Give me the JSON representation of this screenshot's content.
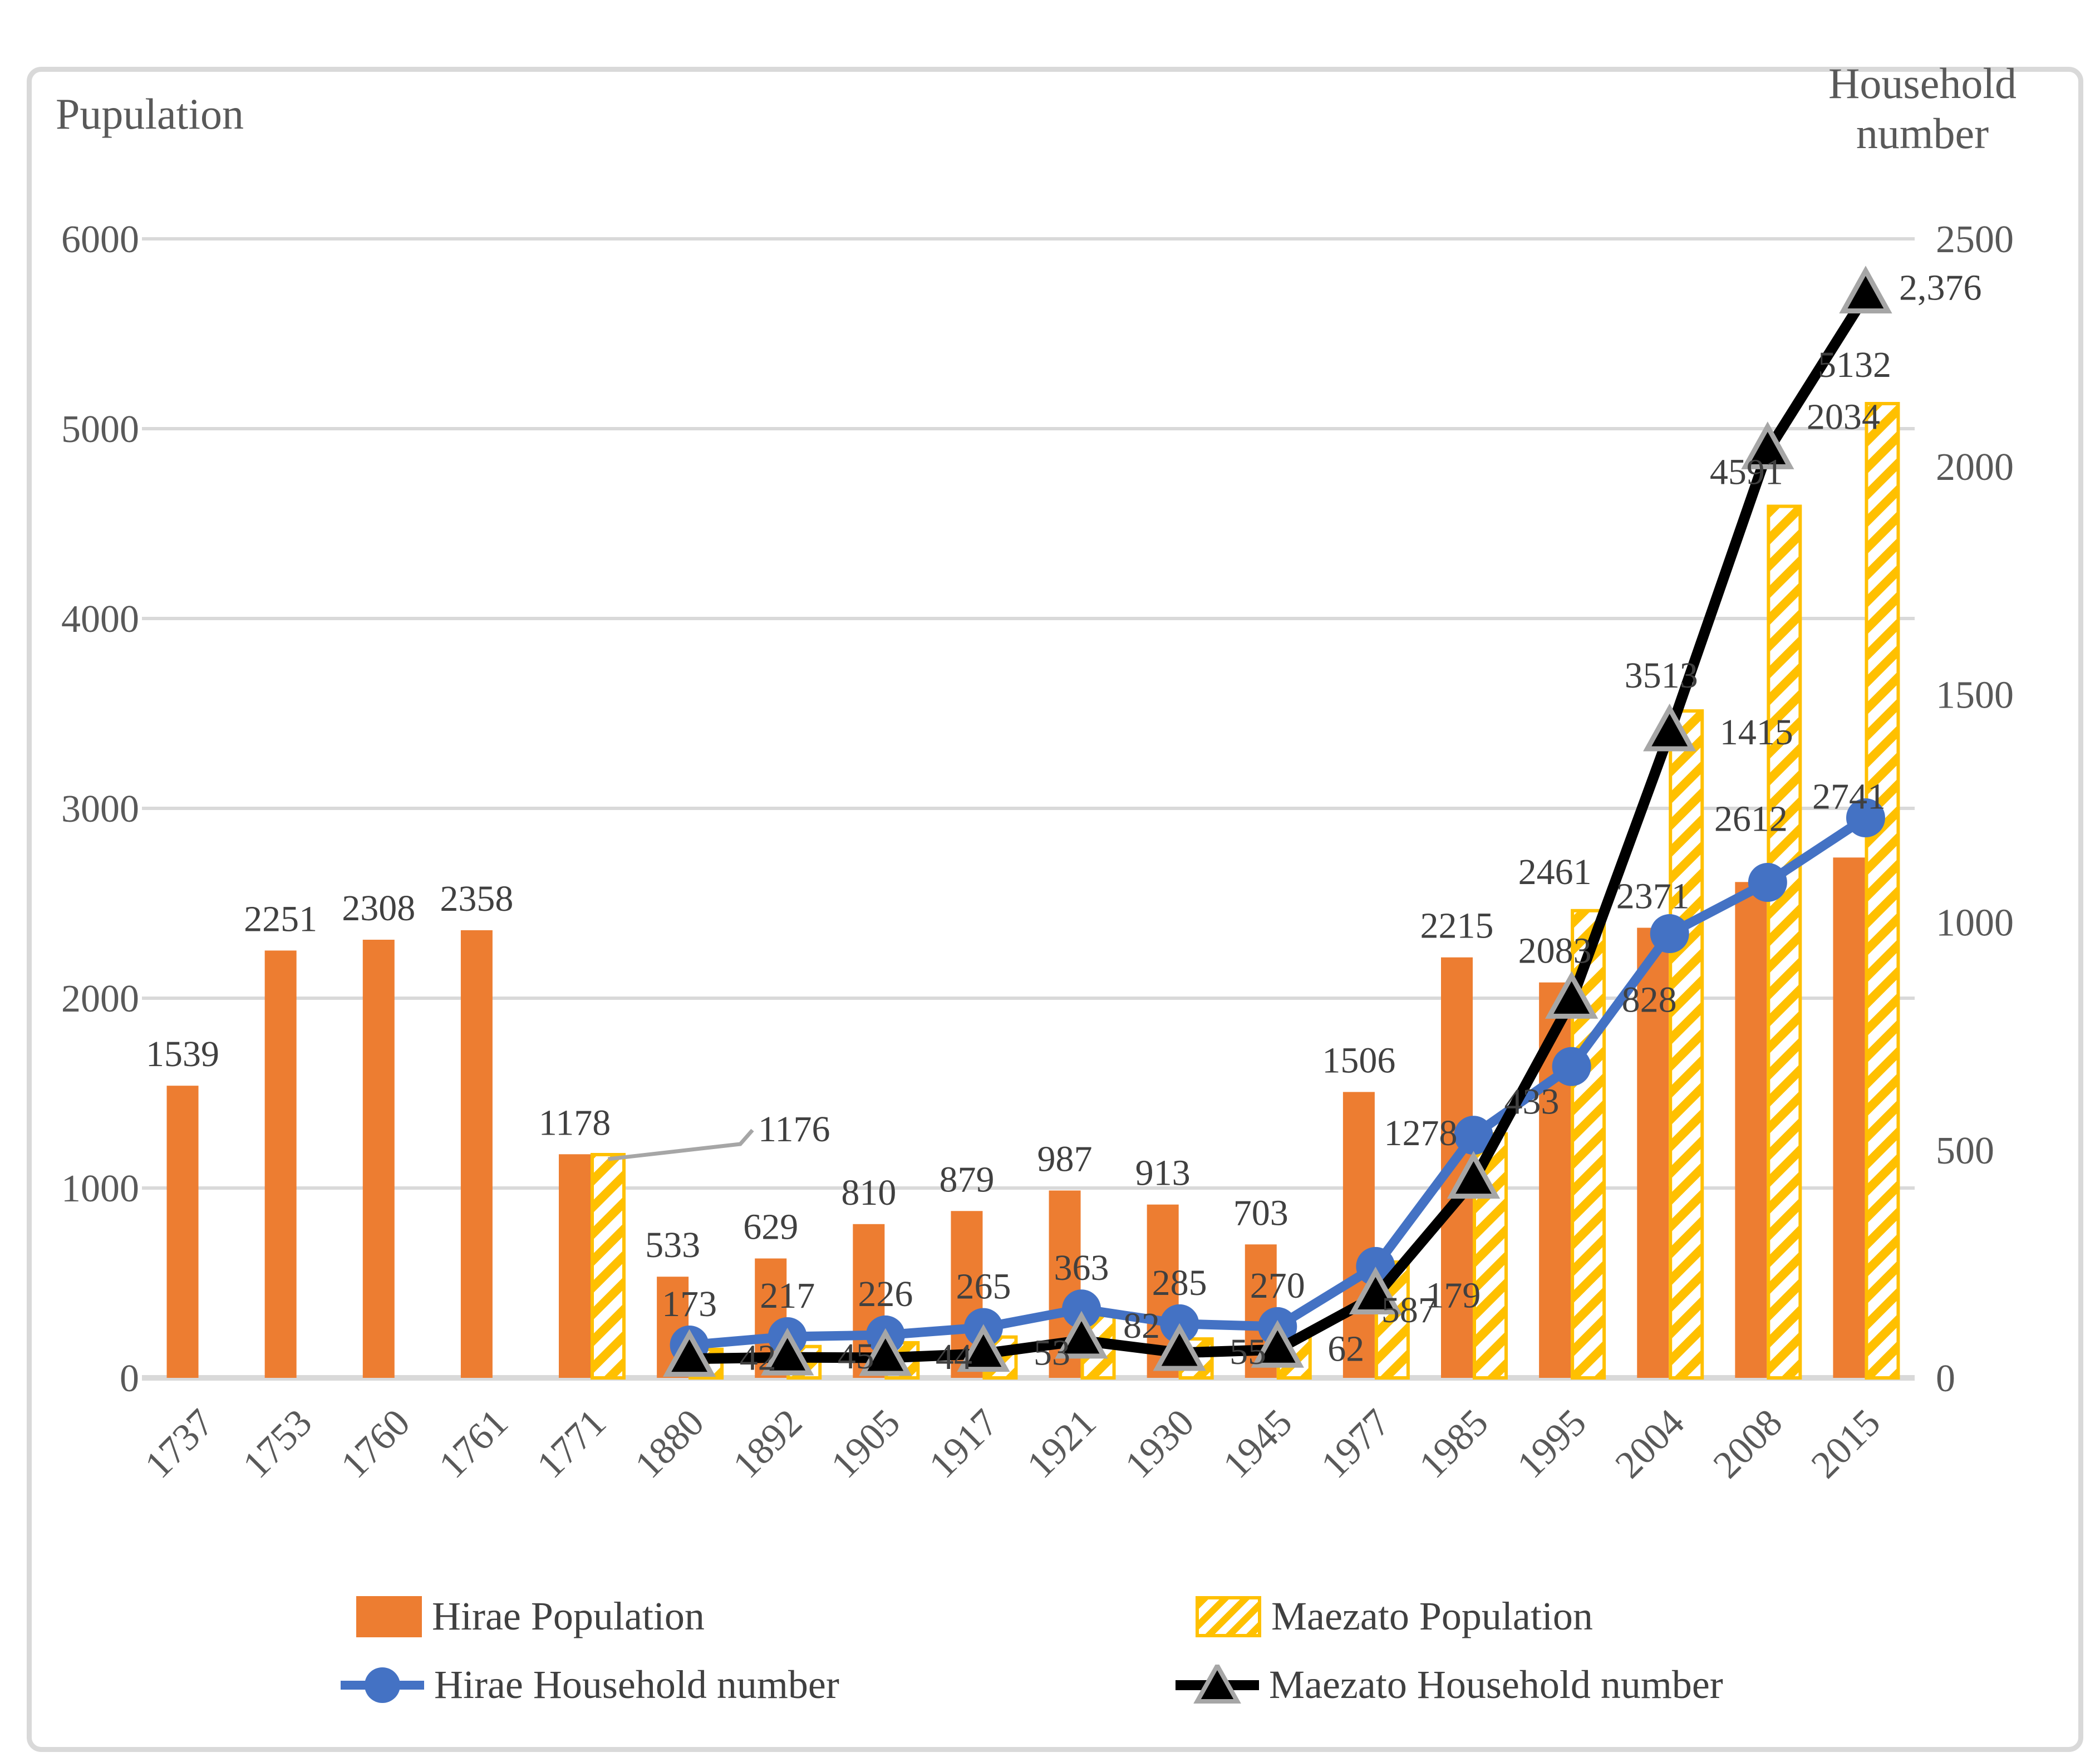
{
  "chart": {
    "left_axis_title": "Pupulation",
    "right_axis_title_line1": "Household",
    "right_axis_title_line2": "number"
  },
  "legend": {
    "hirae_pop": "Hirae Population",
    "maezato_pop": "Maezato Population",
    "hirae_hh": "Hirae Household number",
    "maezato_hh": "Maezato Household number"
  },
  "colors": {
    "orange": "#ED7D31",
    "yellow": "#FFC000",
    "blue": "#4472C4",
    "black": "#000000",
    "gridline": "#D9D9D9",
    "axis_text": "#595959",
    "label_text": "#404040",
    "marker_edge": "#A6A6A6"
  },
  "chart_data": {
    "type": "bar",
    "subtype": "combo-bar-line-dual-axis",
    "categories": [
      "1737",
      "1753",
      "1760",
      "1761",
      "1771",
      "1880",
      "1892",
      "1905",
      "1917",
      "1921",
      "1930",
      "1945",
      "1977",
      "1985",
      "1995",
      "2004",
      "2008",
      "2015"
    ],
    "left_axis": {
      "min": 0,
      "max": 6000,
      "gridline_step": 1000,
      "ticks": [
        "0",
        "1000",
        "2000",
        "3000",
        "4000",
        "5000",
        "6000"
      ]
    },
    "right_axis": {
      "min": 0,
      "max": 2500,
      "ticks": [
        "0",
        "500",
        "1000",
        "1500",
        "2000",
        "2500"
      ]
    },
    "grid": true,
    "legend_position": "bottom",
    "series": [
      {
        "name": "Hirae Population",
        "type": "bar",
        "axis": "left",
        "color": "#ED7D31",
        "values": [
          1539,
          2251,
          2308,
          2358,
          1178,
          533,
          629,
          810,
          879,
          987,
          913,
          703,
          1506,
          2215,
          2083,
          2371,
          2612,
          2741
        ],
        "labels": [
          "1539",
          "2251",
          "2308",
          "2358",
          "1178",
          "533",
          "629",
          "810",
          "879",
          "987",
          "913",
          "703",
          "1506",
          "2215",
          "2083",
          "2371",
          "2612",
          "2741"
        ],
        "label_offsets": {
          "16": [
            0,
            -92
          ],
          "17": [
            0,
            -88
          ]
        }
      },
      {
        "name": "Maezato Population",
        "type": "bar",
        "style": "hatched",
        "axis": "left",
        "color": "#FFC000",
        "values": [
          null,
          null,
          null,
          null,
          1176,
          150,
          165,
          185,
          215,
          330,
          205,
          225,
          610,
          1285,
          2461,
          3513,
          4591,
          5132
        ],
        "labels": [
          null,
          null,
          null,
          null,
          "1176",
          null,
          null,
          null,
          null,
          null,
          null,
          null,
          null,
          null,
          "2461",
          "3513",
          "4591",
          "5132"
        ],
        "label_offsets": {
          "14": [
            -60,
            -48
          ],
          "15": [
            -45,
            -42
          ],
          "16": [
            -68,
            -40
          ],
          "17": [
            -50,
            -48
          ]
        },
        "leader_label_index": 4,
        "unlabeled_values_estimated_from_pixels": true
      },
      {
        "name": "Hirae Household number",
        "type": "line",
        "marker": "circle",
        "axis": "left",
        "color": "#4472C4",
        "values": [
          null,
          null,
          null,
          null,
          null,
          173,
          217,
          226,
          265,
          363,
          285,
          270,
          587,
          1278,
          1640,
          2340,
          2610,
          2950
        ],
        "labels": [
          null,
          null,
          null,
          null,
          null,
          "173",
          "217",
          "226",
          "265",
          "363",
          "285",
          "270",
          "587",
          "1278",
          null,
          null,
          null,
          null
        ],
        "label_offsets": {
          "12": [
            60,
            100
          ],
          "13": [
            -95,
            18
          ]
        },
        "unlabeled_values_estimated_from_pixels": true
      },
      {
        "name": "Maezato Household number",
        "type": "line",
        "marker": "triangle",
        "axis": "right",
        "color": "#000000",
        "values": [
          null,
          null,
          null,
          null,
          null,
          42,
          45,
          44,
          53,
          82,
          55,
          62,
          179,
          433,
          828,
          1415,
          2034,
          2376
        ],
        "labels": [
          null,
          null,
          null,
          null,
          null,
          "42",
          "45",
          "44",
          "53",
          "82",
          "55",
          "62",
          "179",
          "433",
          "828",
          "1415",
          "2034",
          "2,376"
        ],
        "label_offsets": {
          "9": [
            75,
            -5
          ],
          "13": [
            55,
            -120
          ],
          "16": [
            70,
            -40
          ],
          "17": [
            60,
            8
          ]
        }
      }
    ]
  }
}
